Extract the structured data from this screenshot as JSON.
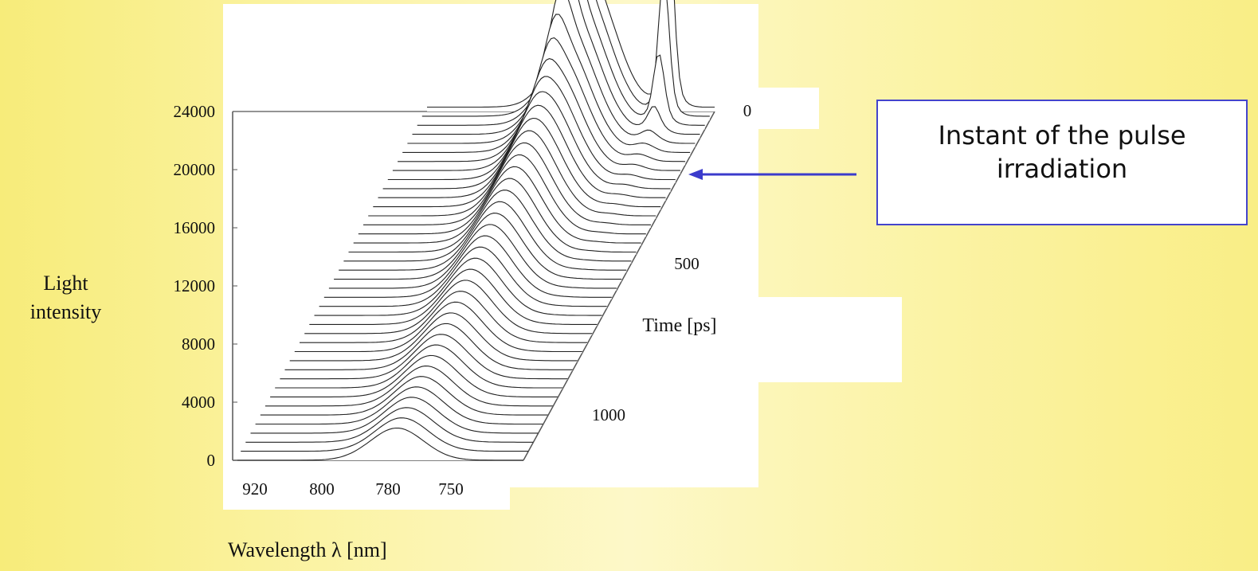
{
  "chart_data": {
    "type": "waterfall-3d-line",
    "ylabel_lines": [
      "Light",
      "intensity"
    ],
    "xlabel": "Wavelength λ [nm]",
    "zlabel": "Time [ps]",
    "y_ticks": [
      "24000",
      "20000",
      "16000",
      "12000",
      "8000",
      "4000",
      "0"
    ],
    "x_ticks": [
      "920",
      "800",
      "780",
      "750"
    ],
    "time_ticks": [
      "0",
      "500",
      "1000"
    ],
    "ylim": [
      0,
      24000
    ],
    "time_range": [
      0,
      1100
    ],
    "peaks_nm": [
      780,
      750
    ],
    "n_traces": 40
  },
  "callout": {
    "lines": [
      "Instant of the pulse",
      "irradiation"
    ],
    "arrow_color": "#3b3bcc",
    "border_color": "#4444cc"
  },
  "colors": {
    "trace": "#222222",
    "panel": "#ffffff"
  }
}
